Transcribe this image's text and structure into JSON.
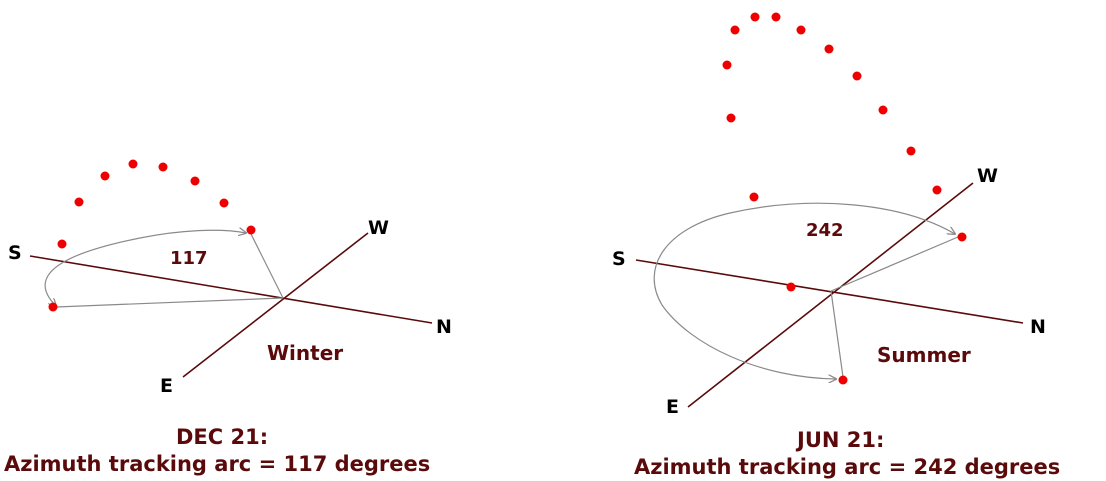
{
  "winter": {
    "compass": {
      "s": "S",
      "n": "N",
      "w": "W",
      "e": "E"
    },
    "arc_label": "117",
    "season": "Winter",
    "caption_line1": "DEC 21:",
    "caption_line2": "Azimuth tracking arc = 117 degrees"
  },
  "summer": {
    "compass": {
      "s": "S",
      "n": "N",
      "w": "W",
      "e": "E"
    },
    "arc_label": "242",
    "season": "Summer",
    "caption_line1": "JUN 21:",
    "caption_line2": "Azimuth tracking arc = 242 degrees"
  },
  "colors": {
    "sun_dot": "#ee0000",
    "axis_line": "#5a0a0a",
    "arc_line": "#8a8a8a",
    "text_dark_red": "#5a0a0a"
  }
}
